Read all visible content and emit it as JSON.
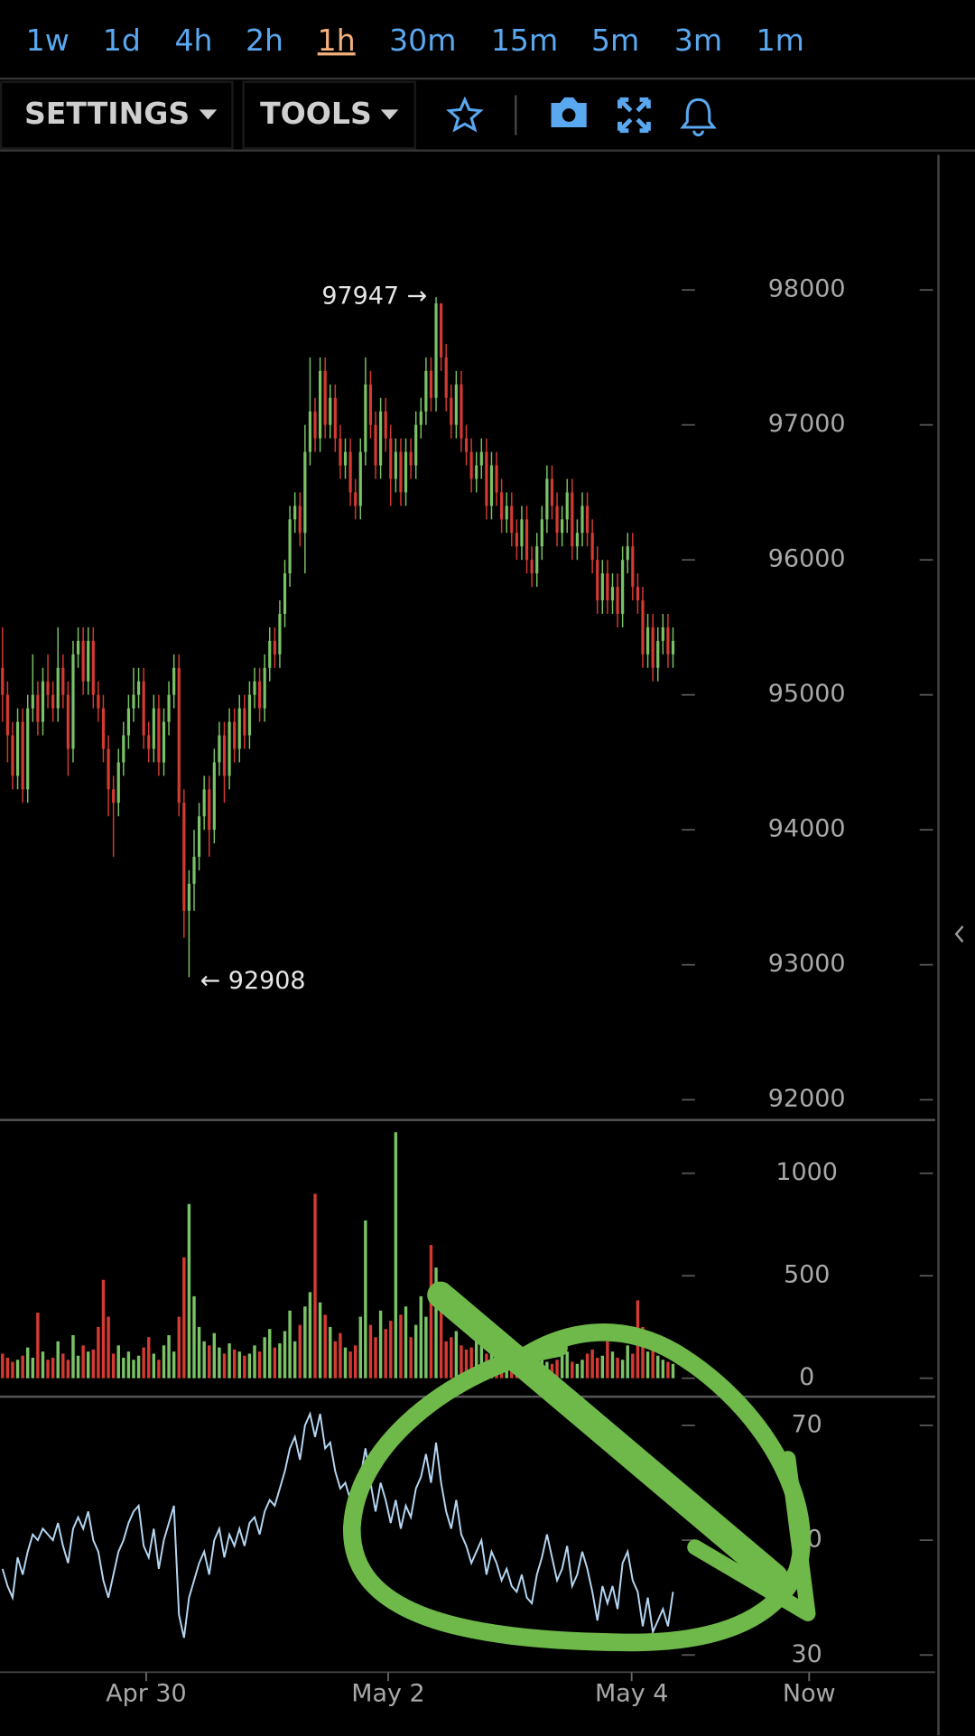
{
  "toolbar": {
    "timeframes": [
      "1w",
      "1d",
      "4h",
      "2h",
      "1h",
      "30m",
      "15m",
      "5m",
      "3m",
      "1m"
    ],
    "active": 4,
    "menus": [
      "SETTINGS",
      "TOOLS"
    ]
  },
  "chart_data": [
    {
      "type": "candlestick",
      "up_color": "#79c266",
      "down_color": "#d33a32",
      "annotations": [
        "97947 →",
        "← 92908"
      ],
      "ylim": [
        91850,
        99000
      ],
      "yticks": [
        92000,
        93000,
        94000,
        95000,
        96000,
        97000,
        98000
      ],
      "open": [
        95200,
        95000,
        94700,
        94400,
        94800,
        94300,
        94900,
        95000,
        94800,
        95100,
        95000,
        94900,
        95200,
        95000,
        94600,
        95300,
        95400,
        95100,
        95400,
        95000,
        94900,
        94600,
        94300,
        94200,
        94500,
        94700,
        94900,
        95000,
        95100,
        94700,
        94600,
        94900,
        94500,
        94800,
        95000,
        95200,
        94200,
        93400,
        93600,
        93800,
        94100,
        94300,
        94000,
        94500,
        94700,
        94400,
        94800,
        94600,
        94900,
        94700,
        95000,
        95100,
        94900,
        95200,
        95400,
        95300,
        95600,
        95900,
        96300,
        96400,
        96200,
        96800,
        97100,
        96900,
        97400,
        97000,
        97200,
        96900,
        96700,
        96800,
        96500,
        96400,
        96800,
        97300,
        97000,
        96700,
        97100,
        96900,
        96600,
        96800,
        96500,
        96800,
        96700,
        97000,
        97100,
        97400,
        97200,
        97900,
        97500,
        97200,
        97000,
        97300,
        96900,
        96800,
        96600,
        96700,
        96800,
        96400,
        96700,
        96500,
        96300,
        96400,
        96200,
        96100,
        96300,
        96000,
        95900,
        96100,
        96300,
        96600,
        96400,
        96200,
        96300,
        96500,
        96100,
        96200,
        96400,
        96200,
        96000,
        95700,
        95900,
        95700,
        95800,
        95600,
        96000,
        96100,
        95800,
        95700,
        95300,
        95500,
        95200,
        95400,
        95500,
        95300
      ],
      "high": [
        95500,
        95100,
        94800,
        94900,
        94900,
        95000,
        95300,
        95100,
        95200,
        95300,
        95100,
        95500,
        95300,
        95100,
        95400,
        95500,
        95500,
        95500,
        95500,
        95100,
        95000,
        94700,
        94400,
        94600,
        94800,
        95000,
        95200,
        95200,
        95200,
        94800,
        95000,
        95000,
        94900,
        95100,
        95300,
        95300,
        94300,
        93700,
        94000,
        94200,
        94400,
        94400,
        94600,
        94800,
        94800,
        94900,
        94900,
        95000,
        95000,
        95100,
        95200,
        95200,
        95300,
        95500,
        95500,
        95700,
        96000,
        96400,
        96500,
        96500,
        97000,
        97500,
        97200,
        97500,
        97500,
        97300,
        97300,
        97000,
        96900,
        96900,
        96600,
        96900,
        97500,
        97400,
        97100,
        97200,
        97200,
        97000,
        96900,
        96900,
        96900,
        96900,
        97100,
        97200,
        97500,
        97500,
        97947,
        97900,
        97600,
        97300,
        97400,
        97400,
        97000,
        96900,
        96800,
        96900,
        96900,
        96800,
        96800,
        96600,
        96500,
        96500,
        96300,
        96400,
        96400,
        96100,
        96200,
        96400,
        96700,
        96700,
        96500,
        96400,
        96600,
        96600,
        96300,
        96500,
        96500,
        96300,
        96100,
        96000,
        96000,
        95900,
        95900,
        96100,
        96200,
        96200,
        95900,
        95800,
        95600,
        95600,
        95500,
        95600,
        95600,
        95500
      ],
      "low": [
        94800,
        94500,
        94300,
        94300,
        94200,
        94200,
        94800,
        94700,
        94700,
        94900,
        94800,
        94800,
        94900,
        94400,
        94500,
        95200,
        95000,
        95000,
        94900,
        94800,
        94500,
        94100,
        93800,
        94100,
        94400,
        94600,
        94800,
        94900,
        94600,
        94500,
        94500,
        94400,
        94400,
        94700,
        94900,
        94100,
        93200,
        92908,
        93400,
        93700,
        94000,
        93800,
        93900,
        94400,
        94200,
        94300,
        94500,
        94500,
        94600,
        94600,
        94900,
        94800,
        94800,
        95100,
        95200,
        95200,
        95500,
        95800,
        96200,
        96100,
        95900,
        96700,
        96800,
        96800,
        96900,
        96900,
        96800,
        96600,
        96600,
        96400,
        96300,
        96300,
        96700,
        96900,
        96600,
        96600,
        96800,
        96400,
        96500,
        96400,
        96400,
        96600,
        96600,
        96900,
        97000,
        97100,
        97100,
        97400,
        97100,
        96900,
        96900,
        96800,
        96700,
        96500,
        96500,
        96600,
        96300,
        96300,
        96400,
        96200,
        96200,
        96100,
        96000,
        96000,
        95900,
        95800,
        95800,
        96000,
        96200,
        96300,
        96100,
        96100,
        96200,
        96000,
        96000,
        96100,
        96100,
        95900,
        95600,
        95600,
        95600,
        95600,
        95500,
        95500,
        95900,
        95700,
        95600,
        95200,
        95200,
        95100,
        95100,
        95300,
        95200,
        95200
      ],
      "close": [
        95000,
        94700,
        94400,
        94800,
        94300,
        94900,
        95000,
        94800,
        95100,
        95000,
        94900,
        95200,
        95000,
        94600,
        95300,
        95400,
        95100,
        95400,
        95000,
        94900,
        94600,
        94300,
        94200,
        94500,
        94700,
        94900,
        95000,
        95100,
        94700,
        94600,
        94900,
        94500,
        94800,
        95000,
        95200,
        94200,
        93400,
        93600,
        93800,
        94100,
        94300,
        94000,
        94500,
        94700,
        94400,
        94800,
        94600,
        94900,
        94700,
        95000,
        95100,
        94900,
        95200,
        95400,
        95300,
        95600,
        95900,
        96300,
        96400,
        96200,
        96800,
        97100,
        96900,
        97400,
        97000,
        97200,
        96900,
        96700,
        96800,
        96500,
        96400,
        96800,
        97300,
        97000,
        96700,
        97100,
        96900,
        96600,
        96800,
        96500,
        96800,
        96700,
        97000,
        97100,
        97400,
        97200,
        97900,
        97500,
        97200,
        97000,
        97300,
        96900,
        96800,
        96600,
        96700,
        96800,
        96400,
        96700,
        96500,
        96300,
        96400,
        96200,
        96100,
        96300,
        96000,
        95900,
        96100,
        96300,
        96600,
        96400,
        96200,
        96300,
        96500,
        96100,
        96200,
        96400,
        96200,
        96000,
        95700,
        95900,
        95700,
        95800,
        95600,
        96000,
        96100,
        95800,
        95700,
        95300,
        95500,
        95200,
        95400,
        95500,
        95300,
        95400
      ]
    },
    {
      "type": "bar",
      "ylim": [
        -90,
        1260
      ],
      "yticks": [
        0,
        500,
        1000
      ],
      "values": [
        120,
        100,
        80,
        90,
        110,
        150,
        100,
        320,
        130,
        90,
        100,
        180,
        120,
        90,
        210,
        110,
        160,
        130,
        140,
        250,
        480,
        300,
        120,
        160,
        100,
        130,
        90,
        110,
        150,
        200,
        120,
        90,
        160,
        210,
        130,
        300,
        590,
        850,
        400,
        250,
        180,
        160,
        220,
        150,
        120,
        170,
        140,
        130,
        110,
        120,
        160,
        130,
        200,
        240,
        150,
        170,
        230,
        330,
        180,
        260,
        350,
        420,
        900,
        370,
        310,
        250,
        180,
        220,
        150,
        130,
        160,
        300,
        770,
        260,
        200,
        330,
        240,
        280,
        1200,
        310,
        350,
        200,
        260,
        400,
        300,
        650,
        540,
        350,
        180,
        200,
        230,
        160,
        140,
        150,
        200,
        170,
        120,
        140,
        110,
        130,
        100,
        180,
        120,
        110,
        160,
        90,
        100,
        140,
        80,
        70,
        90,
        110,
        130,
        80,
        70,
        90,
        120,
        140,
        100,
        110,
        180,
        130,
        100,
        90,
        160,
        120,
        380,
        250,
        130,
        150,
        110,
        90,
        80,
        70
      ]
    },
    {
      "type": "line",
      "color": "#b4d6f2",
      "ylim": [
        27,
        75
      ],
      "yticks": [
        30,
        50,
        70
      ],
      "xlim": [
        -0.5,
        185
      ],
      "xticks": [
        {
          "value": 28.5,
          "label": "Apr 30"
        },
        {
          "value": 76.5,
          "label": "May 2"
        },
        {
          "value": 124.8,
          "label": "May 4"
        },
        {
          "value": 160,
          "label": "Now"
        }
      ],
      "values": [
        45,
        42,
        40,
        47,
        44,
        48,
        51,
        50,
        52,
        51,
        50,
        53,
        49,
        46,
        52,
        54,
        52,
        55,
        50,
        48,
        43,
        40,
        44,
        48,
        50,
        53,
        55,
        56,
        49,
        47,
        52,
        45,
        50,
        53,
        56,
        37,
        33,
        40,
        43,
        46,
        48,
        44,
        50,
        52,
        47,
        51,
        49,
        52,
        49,
        53,
        54,
        51,
        55,
        57,
        56,
        59,
        62,
        66,
        68,
        64,
        70,
        72,
        68,
        72,
        66,
        67,
        62,
        59,
        60,
        57,
        56,
        61,
        66,
        60,
        55,
        60,
        57,
        53,
        57,
        52,
        56,
        54,
        59,
        61,
        65,
        60,
        67,
        60,
        55,
        52,
        57,
        51,
        49,
        46,
        48,
        50,
        44,
        48,
        46,
        43,
        45,
        42,
        41,
        44,
        40,
        39,
        44,
        47,
        51,
        47,
        43,
        45,
        49,
        42,
        44,
        48,
        45,
        41,
        36,
        42,
        39,
        42,
        38,
        46,
        48,
        43,
        41,
        35,
        40,
        34,
        36,
        38,
        35,
        41
      ]
    }
  ]
}
